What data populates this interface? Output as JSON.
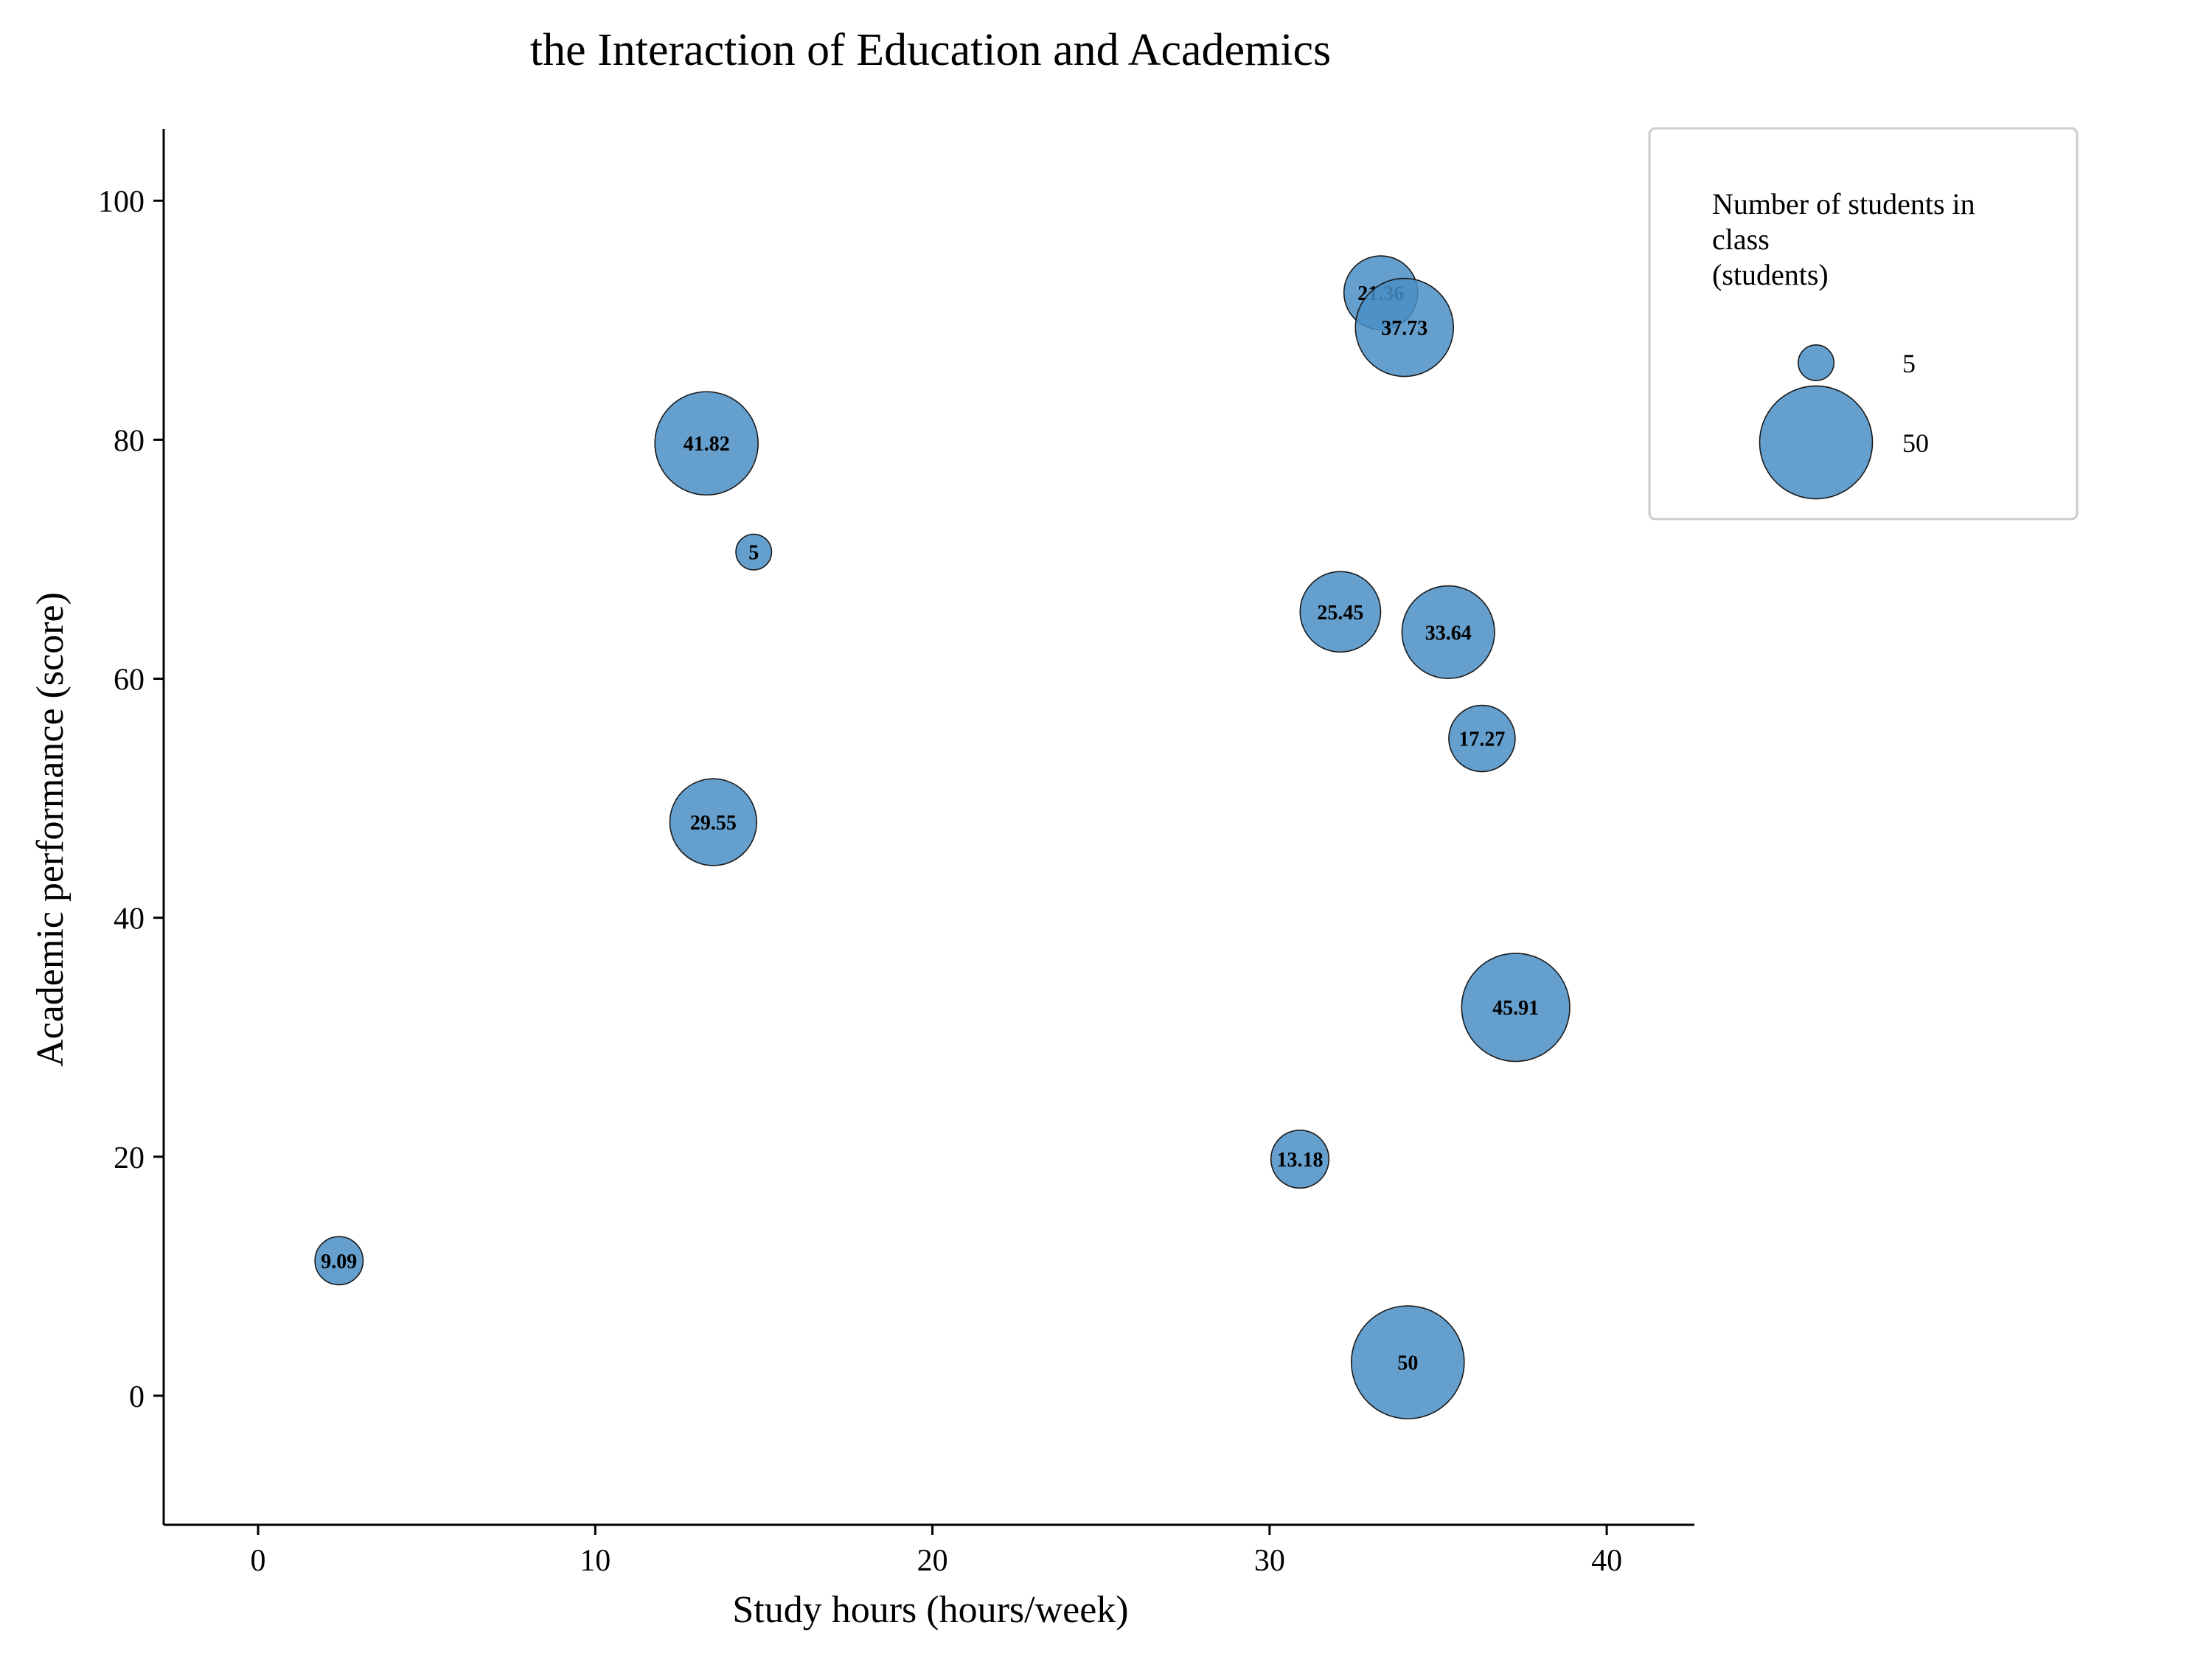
{
  "chart_data": {
    "type": "scatter",
    "subtype": "bubble",
    "title": "the Interaction of Education and Academics",
    "xlabel": "Study hours (hours/week)",
    "ylabel": "Academic performance (score)",
    "xlim": [
      -2.8,
      42.6
    ],
    "ylim": [
      -10.8,
      106
    ],
    "xticks": [
      0,
      10,
      20,
      30,
      40
    ],
    "yticks": [
      0,
      20,
      40,
      60,
      80,
      100
    ],
    "grid": false,
    "bubble_color": "#4a8ec4",
    "edge_color": "#1a1a1a",
    "legend": {
      "placement": "top-right",
      "title_lines": [
        "Number of students in",
        "class",
        "(students)"
      ],
      "entries": [
        {
          "label": "5",
          "size": 5
        },
        {
          "label": "50",
          "size": 50
        }
      ]
    },
    "points": [
      {
        "x": 33.3,
        "y": 92.3,
        "size": 21.36,
        "label": "21.36"
      },
      {
        "x": 34.0,
        "y": 89.4,
        "size": 37.73,
        "label": "37.73"
      },
      {
        "x": 13.3,
        "y": 79.7,
        "size": 41.82,
        "label": "41.82"
      },
      {
        "x": 14.7,
        "y": 70.6,
        "size": 5,
        "label": "5"
      },
      {
        "x": 32.1,
        "y": 65.6,
        "size": 25.45,
        "label": "25.45"
      },
      {
        "x": 35.3,
        "y": 63.9,
        "size": 33.64,
        "label": "33.64"
      },
      {
        "x": 36.3,
        "y": 55.0,
        "size": 17.27,
        "label": "17.27"
      },
      {
        "x": 13.5,
        "y": 48.0,
        "size": 29.55,
        "label": "29.55"
      },
      {
        "x": 37.3,
        "y": 32.5,
        "size": 45.91,
        "label": "45.91"
      },
      {
        "x": 30.9,
        "y": 19.8,
        "size": 13.18,
        "label": "13.18"
      },
      {
        "x": 2.4,
        "y": 11.3,
        "size": 9.09,
        "label": "9.09"
      },
      {
        "x": 34.1,
        "y": 2.8,
        "size": 50,
        "label": "50"
      }
    ]
  }
}
